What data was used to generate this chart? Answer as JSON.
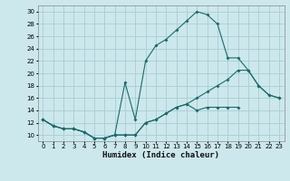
{
  "xlabel": "Humidex (Indice chaleur)",
  "background_color": "#cce8ec",
  "grid_color": "#a8cdd4",
  "line_color": "#1a6b6b",
  "xlim": [
    -0.5,
    23.5
  ],
  "ylim": [
    9,
    31
  ],
  "yticks": [
    10,
    12,
    14,
    16,
    18,
    20,
    22,
    24,
    26,
    28,
    30
  ],
  "xticks": [
    0,
    1,
    2,
    3,
    4,
    5,
    6,
    7,
    8,
    9,
    10,
    11,
    12,
    13,
    14,
    15,
    16,
    17,
    18,
    19,
    20,
    21,
    22,
    23
  ],
  "line1_x": [
    0,
    1,
    2,
    3,
    4,
    5,
    6,
    7,
    8,
    9,
    10,
    11,
    12,
    13,
    14,
    15,
    16,
    17,
    18,
    19,
    20,
    21,
    22,
    23
  ],
  "line1_y": [
    12.5,
    11.5,
    11,
    11,
    10.5,
    9.5,
    9.5,
    10,
    10,
    10,
    12,
    12.5,
    13.5,
    14.5,
    15,
    16,
    17,
    18,
    19,
    20.5,
    20.5,
    18,
    16.5,
    16
  ],
  "line2_x": [
    0,
    1,
    2,
    3,
    4,
    5,
    6,
    7,
    8,
    9,
    10,
    11,
    12,
    13,
    14,
    15,
    16,
    17,
    18,
    19,
    20,
    21,
    22,
    23
  ],
  "line2_y": [
    12.5,
    11.5,
    11,
    11,
    10.5,
    9.5,
    9.5,
    10,
    18.5,
    12.5,
    22,
    24.5,
    25.5,
    27,
    28.5,
    30,
    29.5,
    28,
    22.5,
    22.5,
    20.5,
    18,
    16.5,
    16
  ],
  "line3_x": [
    0,
    1,
    2,
    3,
    4,
    5,
    6,
    7,
    8,
    9,
    10,
    11,
    12,
    13,
    14,
    15,
    16,
    17,
    18,
    19,
    20,
    21,
    22,
    23
  ],
  "line3_y": [
    12.5,
    11.5,
    11,
    11,
    10.5,
    9.5,
    9.5,
    10,
    10,
    10,
    12,
    12.5,
    13.5,
    14.5,
    15,
    14,
    14.5,
    14.5,
    14.5,
    14.5,
    null,
    null,
    null,
    null
  ]
}
